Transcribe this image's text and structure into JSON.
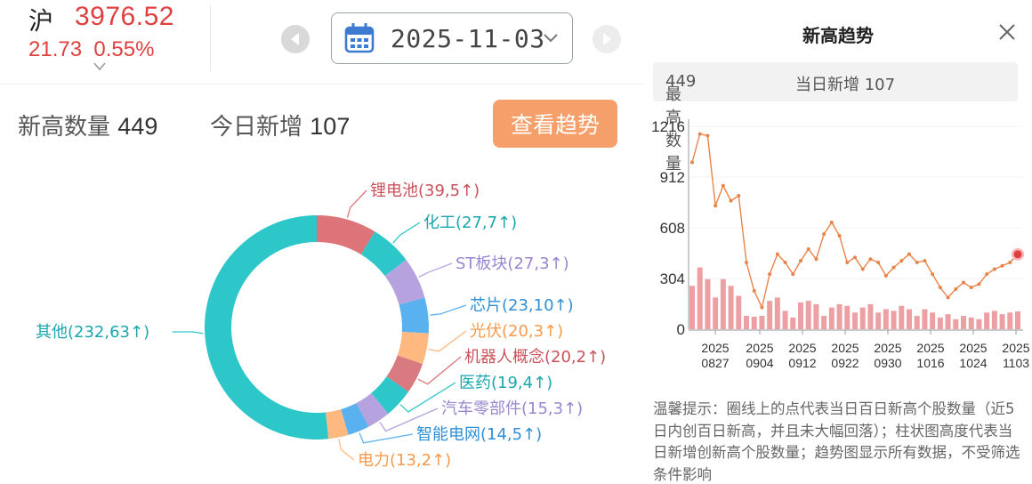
{
  "index": {
    "name": "沪",
    "value": "3976.52",
    "change": "21.73",
    "change_pct": "0.55%",
    "up_color": "#e03f3f"
  },
  "date_picker": {
    "date": "2025-11-03",
    "icon": "calendar-icon"
  },
  "stats": {
    "high_count_label": "新高数量",
    "high_count": "449",
    "today_new_label": "今日新增",
    "today_new": "107"
  },
  "trend_button": {
    "label": "查看趋势",
    "color": "#f5a06a"
  },
  "donut_data": {
    "type": "pie",
    "segments": [
      {
        "label": "锂电池(39,5↑)",
        "value": 39,
        "color": "#dd7479",
        "label_color": "#c9525a"
      },
      {
        "label": "化工(27,7↑)",
        "value": 27,
        "color": "#2ec7c9",
        "label_color": "#1aa6ad"
      },
      {
        "label": "ST板块(27,3↑)",
        "value": 27,
        "color": "#b6a2de",
        "label_color": "#9b86cf"
      },
      {
        "label": "芯片(23,10↑)",
        "value": 23,
        "color": "#5ab1ef",
        "label_color": "#2f8fd6"
      },
      {
        "label": "光伏(20,3↑)",
        "value": 20,
        "color": "#ffb980",
        "label_color": "#f59a4c"
      },
      {
        "label": "机器人概念(20,2↑)",
        "value": 20,
        "color": "#d87a80",
        "label_color": "#c9525a"
      },
      {
        "label": "医药(19,4↑)",
        "value": 19,
        "color": "#2ec7c9",
        "label_color": "#1aa6ad"
      },
      {
        "label": "汽车零部件(15,3↑)",
        "value": 15,
        "color": "#b6a2de",
        "label_color": "#9b86cf"
      },
      {
        "label": "智能电网(14,5↑)",
        "value": 14,
        "color": "#5ab1ef",
        "label_color": "#2f8fd6"
      },
      {
        "label": "电力(13,2↑)",
        "value": 13,
        "color": "#ffb980",
        "label_color": "#f59a4c"
      },
      {
        "label": "其他(232,63↑)",
        "value": 232,
        "color": "#2ec7c9",
        "label_color": "#1aa6ad"
      }
    ]
  },
  "trend_panel": {
    "title": "新高趋势",
    "max_count_label": "最高数量",
    "max_count": "449",
    "today_new_label": "当日新增",
    "today_new": "107",
    "tip": "温馨提示：圈线上的点代表当日百日新高个股数量（近5日内创百日新高，并且未大幅回落）；柱状图高度代表当日新增创新高个股数量；趋势图显示所有数据，不受筛选条件影响"
  },
  "chart_data": {
    "type": "line",
    "y_ticks": [
      "1216",
      "912",
      "608",
      "304",
      "0"
    ],
    "ylim": [
      0,
      1216
    ],
    "x_ticks": [
      {
        "year": "2025",
        "date": "0827"
      },
      {
        "year": "2025",
        "date": "0904"
      },
      {
        "year": "2025",
        "date": "0912"
      },
      {
        "year": "2025",
        "date": "0922"
      },
      {
        "year": "2025",
        "date": "0930"
      },
      {
        "year": "2025",
        "date": "1016"
      },
      {
        "year": "2025",
        "date": "1024"
      },
      {
        "year": "2025",
        "date": "1103"
      }
    ],
    "line_color": "#e8844a",
    "bar_color": "#eda0a3",
    "last_point_color": "#e03f3f",
    "series": [
      {
        "name": "百日新高个股数量",
        "values": [
          1000,
          1170,
          1160,
          740,
          860,
          770,
          800,
          400,
          230,
          130,
          330,
          450,
          400,
          330,
          410,
          480,
          420,
          570,
          640,
          560,
          400,
          430,
          360,
          420,
          400,
          320,
          370,
          410,
          450,
          400,
          410,
          330,
          250,
          190,
          240,
          280,
          250,
          270,
          330,
          360,
          380,
          400,
          449
        ]
      },
      {
        "name": "当日新增",
        "values": [
          260,
          370,
          300,
          190,
          300,
          260,
          200,
          80,
          75,
          80,
          170,
          190,
          110,
          70,
          160,
          170,
          150,
          80,
          130,
          150,
          140,
          100,
          130,
          150,
          100,
          120,
          110,
          140,
          120,
          80,
          120,
          100,
          70,
          90,
          60,
          80,
          70,
          60,
          100,
          110,
          90,
          100,
          107
        ]
      }
    ]
  }
}
